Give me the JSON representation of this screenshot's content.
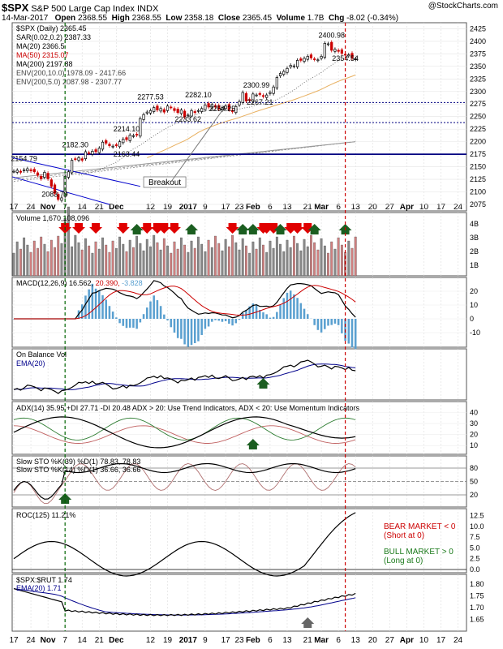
{
  "header": {
    "symbol": "$SPX",
    "name": "S&P 500 Large Cap Index",
    "exchange": "INDX",
    "source": "@StockCharts.com",
    "date": "14-Mar-2017",
    "open_label": "Open",
    "open": "2368.55",
    "high_label": "High",
    "high": "2368.55",
    "low_label": "Low",
    "low": "2358.18",
    "close_label": "Close",
    "close": "2365.45",
    "volume_label": "Volume",
    "volume": "1.7B",
    "chg_label": "Chg",
    "chg": "-8.02 (-0.34%)"
  },
  "colors": {
    "up": "#000000",
    "down": "#cc0000",
    "ma20": "#e8b060",
    "ma50": "#cc0000",
    "ma200": "#000000",
    "env": "#888888",
    "hline": "#000080",
    "macd_hist": "#5aa0d0",
    "ema": "#00008b",
    "adx_plus": "#2e7d32",
    "adx_minus": "#c06060",
    "vol_up": "#888888",
    "vol_down": "#d08080",
    "arrow_up": "#1b5e20",
    "arrow_down": "#e00000"
  },
  "chart_data": {
    "type": "line",
    "x_tick_labels": [
      "17",
      "24",
      "Nov",
      "7",
      "14",
      "21",
      "Dec",
      "12",
      "19",
      "2017",
      "9",
      "17",
      "23",
      "Feb",
      "6",
      "13",
      "21",
      "Mar",
      "6",
      "13",
      "20",
      "27",
      "Apr",
      "10",
      "17",
      "24"
    ],
    "x_tick_index": [
      0,
      5,
      10,
      15,
      20,
      25,
      30,
      40,
      45,
      51,
      56,
      62,
      66,
      70,
      75,
      80,
      86,
      90,
      95,
      100,
      105,
      110,
      115,
      120,
      125,
      130
    ],
    "price_panel": {
      "legend": [
        "$SPX (Daily) 2365.45",
        "SAR(0.02,0.2) 2387.33",
        "MA(20) 2366.5",
        "MA(50) 2315.07",
        "MA(200) 2197.88",
        "ENV(200,10.0) 1978.09 - 2417.66",
        "ENV(200,5.0) 2087.98 - 2307.77"
      ],
      "y_ticks": [
        2075,
        2100,
        2125,
        2150,
        2175,
        2200,
        2225,
        2250,
        2275,
        2300,
        2325,
        2350,
        2375,
        2400,
        2425
      ],
      "ylim": [
        2062,
        2437
      ],
      "annotations": [
        {
          "text": "2400.98",
          "i": 93,
          "y": 2400.98
        },
        {
          "text": "2354.54",
          "i": 97,
          "y": 2354.54
        },
        {
          "text": "2300.99",
          "i": 71,
          "y": 2300.99
        },
        {
          "text": "2282.10",
          "i": 54,
          "y": 2282.1
        },
        {
          "text": "2277.53",
          "i": 40,
          "y": 2277.53
        },
        {
          "text": "2267.21",
          "i": 72,
          "y": 2267.21
        },
        {
          "text": "2254.25",
          "i": 61,
          "y": 2254.25
        },
        {
          "text": "2233.62",
          "i": 51,
          "y": 2233.62
        },
        {
          "text": "2214.10",
          "i": 33,
          "y": 2214.1
        },
        {
          "text": "2182.30",
          "i": 18,
          "y": 2182.3
        },
        {
          "text": "2154.79",
          "i": 3,
          "y": 2154.79
        },
        {
          "text": "2083.79",
          "i": 12,
          "y": 2083.79
        },
        {
          "text": "2163.44",
          "i": 33,
          "y": 2163.44
        }
      ],
      "breakout_label": "Breakout",
      "hlines": [
        2175,
        2278,
        2238
      ],
      "close": [
        2141,
        2143,
        2139,
        2144,
        2146,
        2142,
        2140,
        2133,
        2126,
        2139,
        2126,
        2111,
        2097,
        2085,
        2088,
        2131,
        2140,
        2163,
        2165,
        2168,
        2163,
        2180,
        2177,
        2181,
        2180,
        2187,
        2199,
        2197,
        2192,
        2191,
        2192,
        2200,
        2205,
        2204,
        2213,
        2212,
        2213,
        2246,
        2254,
        2259,
        2262,
        2268,
        2263,
        2266,
        2259,
        2271,
        2268,
        2262,
        2258,
        2263,
        2249,
        2253,
        2262,
        2258,
        2262,
        2266,
        2273,
        2269,
        2274,
        2269,
        2265,
        2268,
        2271,
        2264,
        2260,
        2270,
        2280,
        2298,
        2281,
        2282,
        2295,
        2293,
        2294,
        2290,
        2293,
        2298,
        2309,
        2328,
        2336,
        2340,
        2346,
        2352,
        2351,
        2362,
        2362,
        2366,
        2370,
        2367,
        2364,
        2363,
        2370,
        2396,
        2395,
        2382,
        2384,
        2380,
        2376,
        2373,
        2373,
        2366,
        2365
      ]
    },
    "volume_panel": {
      "legend": "Volume 1,670,108,096",
      "y_ticks": [
        "1B",
        "2B",
        "3B",
        "4B"
      ]
    },
    "macd_panel": {
      "legend_name": "MACD(12,26,9)",
      "v1": "16.562",
      "v2": "20.390",
      "v3": "-3.828",
      "y_ticks": [
        -10,
        0,
        10,
        20
      ]
    },
    "obv_panel": {
      "legend": [
        "On Balance Vol",
        "EMA(20)"
      ]
    },
    "adx_panel": {
      "legend": "ADX(14) 35.95 +DI 27.71 -DI 20.48 ADX > 20: Use Trend Indicators, ADX < 20: Use Momentum Indicators",
      "y_ticks": [
        10,
        20,
        30,
        40
      ]
    },
    "sto_panel": {
      "legend": [
        "Slow STO %K(39) %D(1) 78.83, 78.83",
        "Slow STO %K(14) %D(1) 36.66, 36.66"
      ],
      "y_ticks": [
        20,
        50,
        80
      ]
    },
    "roc_panel": {
      "legend": "ROC(125) 11.21%",
      "y_ticks": [
        "0.0",
        "2.5",
        "5.0",
        "7.5",
        "10.0",
        "12.5"
      ],
      "notes": [
        "BEAR MARKET < 0",
        "(Short at 0)",
        "BULL MARKET > 0",
        "(Long at 0)"
      ]
    },
    "ratio_panel": {
      "legend": [
        "$SPX:$RUT 1.74",
        "EMA(20) 1.71"
      ],
      "y_ticks": [
        "1.65",
        "1.70",
        "1.75",
        "1.80"
      ]
    },
    "vlines": [
      {
        "i": 15,
        "color": "#006400"
      },
      {
        "i": 97,
        "color": "#cc0000"
      }
    ]
  }
}
